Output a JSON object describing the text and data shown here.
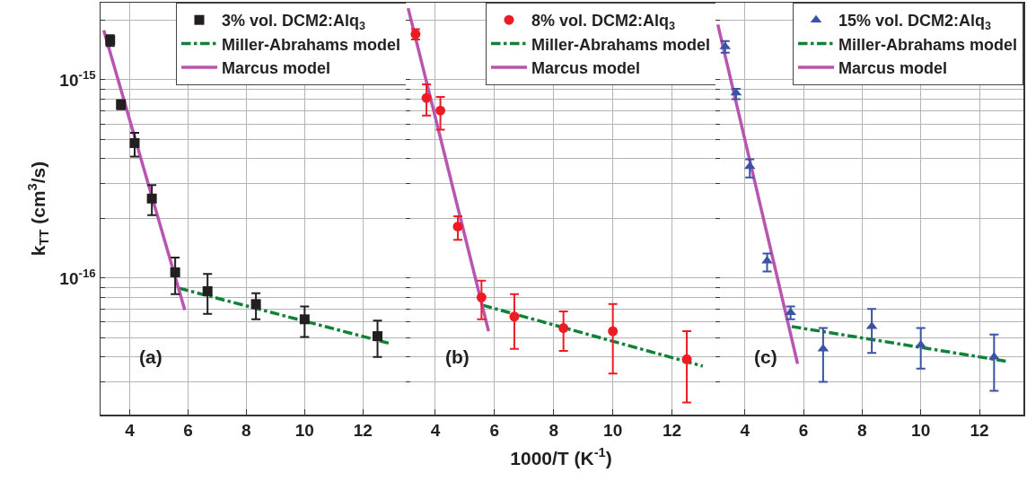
{
  "chart_data": [
    {
      "type": "scatter",
      "ylabel": "k$_{TT}$ (cm$^{3}$/s)",
      "annotations": [
        "(a)"
      ],
      "log": "y",
      "grid": true,
      "legend": "top right",
      "tick_labels": "xy",
      "xlim": [
        3,
        13.5
      ],
      "xticks": [
        4,
        6,
        8,
        10,
        12
      ],
      "ylim": [
        2.05e-17,
        2.45e-15
      ],
      "yticks": [
        {
          "value": 3e-17,
          "label": null
        },
        {
          "value": 4e-17,
          "label": null
        },
        {
          "value": 5e-17,
          "label": null
        },
        {
          "value": 6e-17,
          "label": null
        },
        {
          "value": 7e-17,
          "label": null
        },
        {
          "value": 8e-17,
          "label": null
        },
        {
          "value": 9e-17,
          "label": null
        },
        {
          "value": 1e-16,
          "label": "10$^{-16}$"
        },
        {
          "value": 2e-16,
          "label": null
        },
        {
          "value": 3e-16,
          "label": null
        },
        {
          "value": 4e-16,
          "label": null
        },
        {
          "value": 5e-16,
          "label": null
        },
        {
          "value": 6e-16,
          "label": null
        },
        {
          "value": 7e-16,
          "label": null
        },
        {
          "value": 8e-16,
          "label": null
        },
        {
          "value": 9e-16,
          "label": null
        },
        {
          "value": 1e-15,
          "label": "10$^{-15}$"
        },
        {
          "value": 2e-15,
          "label": null
        }
      ],
      "series": [
        {
          "name": "3% vol. DCM2:Alq$_{3}$",
          "marker": "square",
          "color": "#231f20",
          "x": [
            3.33,
            3.7,
            4.17,
            4.76,
            5.56,
            6.67,
            8.33,
            10,
            12.5
          ],
          "values": [
            1.58e-15,
            7.5e-16,
            4.8e-16,
            2.52e-16,
            1.07e-16,
            8.6e-17,
            7.4e-17,
            6.2e-17,
            5.1e-17
          ],
          "errors": [
            [
              1.48e-15,
              1.68e-15
            ],
            [
              7.1e-16,
              7.9e-16
            ],
            [
              4.1e-16,
              5.4e-16
            ],
            [
              2.08e-16,
              2.95e-16
            ],
            [
              8.3e-17,
              1.27e-16
            ],
            [
              6.6e-17,
              1.05e-16
            ],
            [
              6.2e-17,
              8.4e-17
            ],
            [
              5.05e-17,
              7.2e-17
            ],
            [
              4e-17,
              6.1e-17
            ]
          ]
        },
        {
          "name": "Miller-Abrahams model",
          "type": "line",
          "line_style": "dashed",
          "color": "#11813a",
          "x": [
            5.69,
            12.88
          ],
          "values": [
            8.9e-17,
            4.7e-17
          ]
        },
        {
          "name": "Marcus model",
          "type": "line",
          "line_style": "solid",
          "color": "#b855b0",
          "x": [
            3.11,
            5.89
          ],
          "values": [
            1.78e-15,
            6.9e-17
          ]
        }
      ]
    },
    {
      "type": "scatter",
      "xlabel": "1000/T (K$^{-1}$)",
      "annotations": [
        "(b)"
      ],
      "log": "y",
      "grid": true,
      "legend": "top right",
      "tick_labels": "x",
      "xlim": [
        3,
        13.5
      ],
      "xticks": [
        4,
        6,
        8,
        10,
        12
      ],
      "ylim": [
        2.05e-17,
        2.45e-15
      ],
      "yticks": [
        {
          "value": 3e-17,
          "label": null
        },
        {
          "value": 4e-17,
          "label": null
        },
        {
          "value": 5e-17,
          "label": null
        },
        {
          "value": 6e-17,
          "label": null
        },
        {
          "value": 7e-17,
          "label": null
        },
        {
          "value": 8e-17,
          "label": null
        },
        {
          "value": 9e-17,
          "label": null
        },
        {
          "value": 1e-16,
          "label": null
        },
        {
          "value": 2e-16,
          "label": null
        },
        {
          "value": 3e-16,
          "label": null
        },
        {
          "value": 4e-16,
          "label": null
        },
        {
          "value": 5e-16,
          "label": null
        },
        {
          "value": 6e-16,
          "label": null
        },
        {
          "value": 7e-16,
          "label": null
        },
        {
          "value": 8e-16,
          "label": null
        },
        {
          "value": 9e-16,
          "label": null
        },
        {
          "value": 1e-15,
          "label": null
        },
        {
          "value": 2e-15,
          "label": null
        }
      ],
      "series": [
        {
          "name": "8% vol. DCM2:Alq$_{3}$",
          "marker": "circle",
          "color": "#ed1c24",
          "x": [
            3.33,
            3.7,
            4.17,
            4.76,
            5.56,
            6.67,
            8.33,
            10,
            12.5
          ],
          "values": [
            1.7e-15,
            8.1e-16,
            7e-16,
            1.82e-16,
            8e-17,
            6.4e-17,
            5.6e-17,
            5.4e-17,
            3.9e-17
          ],
          "errors": [
            [
              1.6e-15,
              1.8e-15
            ],
            [
              6.6e-16,
              9.5e-16
            ],
            [
              5.6e-16,
              8.2e-16
            ],
            [
              1.56e-16,
              2.05e-16
            ],
            [
              6.2e-17,
              9.7e-17
            ],
            [
              4.4e-17,
              8.3e-17
            ],
            [
              4.3e-17,
              6.8e-17
            ],
            [
              3.3e-17,
              7.4e-17
            ],
            [
              2.36e-17,
              5.4e-17
            ]
          ]
        },
        {
          "name": "Miller-Abrahams model",
          "type": "line",
          "line_style": "dashed",
          "color": "#11813a",
          "x": [
            5.6,
            13.04
          ],
          "values": [
            7.3e-17,
            3.6e-17
          ]
        },
        {
          "name": "Marcus model",
          "type": "line",
          "line_style": "solid",
          "color": "#b855b0",
          "x": [
            3.08,
            5.8
          ],
          "values": [
            2.3e-15,
            5.4e-17
          ]
        }
      ]
    },
    {
      "type": "scatter",
      "annotations": [
        "(c)"
      ],
      "log": "y",
      "grid": true,
      "legend": "top right",
      "tick_labels": "x",
      "xlim": [
        3,
        13.5
      ],
      "xticks": [
        4,
        6,
        8,
        10,
        12
      ],
      "ylim": [
        2.05e-17,
        2.45e-15
      ],
      "yticks": [
        {
          "value": 3e-17,
          "label": null
        },
        {
          "value": 4e-17,
          "label": null
        },
        {
          "value": 5e-17,
          "label": null
        },
        {
          "value": 6e-17,
          "label": null
        },
        {
          "value": 7e-17,
          "label": null
        },
        {
          "value": 8e-17,
          "label": null
        },
        {
          "value": 9e-17,
          "label": null
        },
        {
          "value": 1e-16,
          "label": null
        },
        {
          "value": 2e-16,
          "label": null
        },
        {
          "value": 3e-16,
          "label": null
        },
        {
          "value": 4e-16,
          "label": null
        },
        {
          "value": 5e-16,
          "label": null
        },
        {
          "value": 6e-16,
          "label": null
        },
        {
          "value": 7e-16,
          "label": null
        },
        {
          "value": 8e-16,
          "label": null
        },
        {
          "value": 9e-16,
          "label": null
        },
        {
          "value": 1e-15,
          "label": null
        },
        {
          "value": 2e-15,
          "label": null
        }
      ],
      "series": [
        {
          "name": "15% vol. DCM2:Alq$_{3}$",
          "marker": "triangle",
          "color": "#3a53a4",
          "x": [
            3.33,
            3.7,
            4.17,
            4.76,
            5.56,
            6.67,
            8.33,
            10,
            12.5
          ],
          "values": [
            1.47e-15,
            8.6e-16,
            3.66e-16,
            1.22e-16,
            6.7e-17,
            4.4e-17,
            5.7e-17,
            4.6e-17,
            4e-17
          ],
          "errors": [
            [
              1.37e-15,
              1.57e-15
            ],
            [
              8e-16,
              9e-16
            ],
            [
              3.22e-16,
              3.98e-16
            ],
            [
              1.08e-16,
              1.33e-16
            ],
            [
              6.2e-17,
              7.2e-17
            ],
            [
              3e-17,
              5.6e-17
            ],
            [
              4.2e-17,
              7e-17
            ],
            [
              3.5e-17,
              5.6e-17
            ],
            [
              2.7e-17,
              5.2e-17
            ]
          ]
        },
        {
          "name": "Miller-Abrahams model",
          "type": "line",
          "line_style": "dashed",
          "color": "#11813a",
          "x": [
            5.6,
            12.97
          ],
          "values": [
            5.7e-17,
            3.8e-17
          ]
        },
        {
          "name": "Marcus model",
          "type": "line",
          "line_style": "solid",
          "color": "#b855b0",
          "x": [
            3.08,
            5.8
          ],
          "values": [
            1.9e-15,
            3.7e-17
          ]
        }
      ]
    }
  ]
}
